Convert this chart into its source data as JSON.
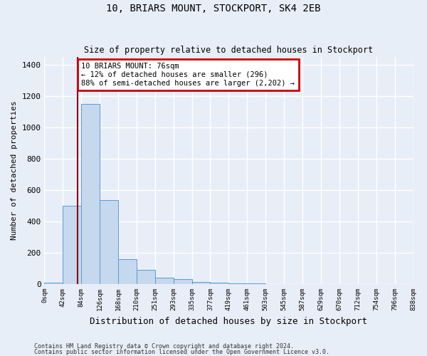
{
  "title1": "10, BRIARS MOUNT, STOCKPORT, SK4 2EB",
  "title2": "Size of property relative to detached houses in Stockport",
  "xlabel": "Distribution of detached houses by size in Stockport",
  "ylabel": "Number of detached properties",
  "footnote1": "Contains HM Land Registry data © Crown copyright and database right 2024.",
  "footnote2": "Contains public sector information licensed under the Open Government Licence v3.0.",
  "bin_edges": [
    0,
    42,
    84,
    126,
    168,
    210,
    251,
    293,
    335,
    377,
    419,
    461,
    503,
    545,
    587,
    629,
    670,
    712,
    754,
    796,
    838
  ],
  "bar_heights": [
    10,
    500,
    1150,
    535,
    160,
    90,
    40,
    30,
    15,
    8,
    5,
    3,
    2,
    2,
    1,
    1,
    1,
    1,
    1,
    1
  ],
  "bar_color": "#c5d8ee",
  "bar_edge_color": "#5b9bd5",
  "property_size": 76,
  "property_label": "10 BRIARS MOUNT: 76sqm",
  "annotation_line1": "← 12% of detached houses are smaller (296)",
  "annotation_line2": "88% of semi-detached houses are larger (2,202) →",
  "vline_color": "#8b0000",
  "annotation_box_color": "#cc0000",
  "ylim": [
    0,
    1450
  ],
  "yticks": [
    0,
    200,
    400,
    600,
    800,
    1000,
    1200,
    1400
  ],
  "bg_color": "#e8eef8",
  "grid_color": "#ffffff"
}
